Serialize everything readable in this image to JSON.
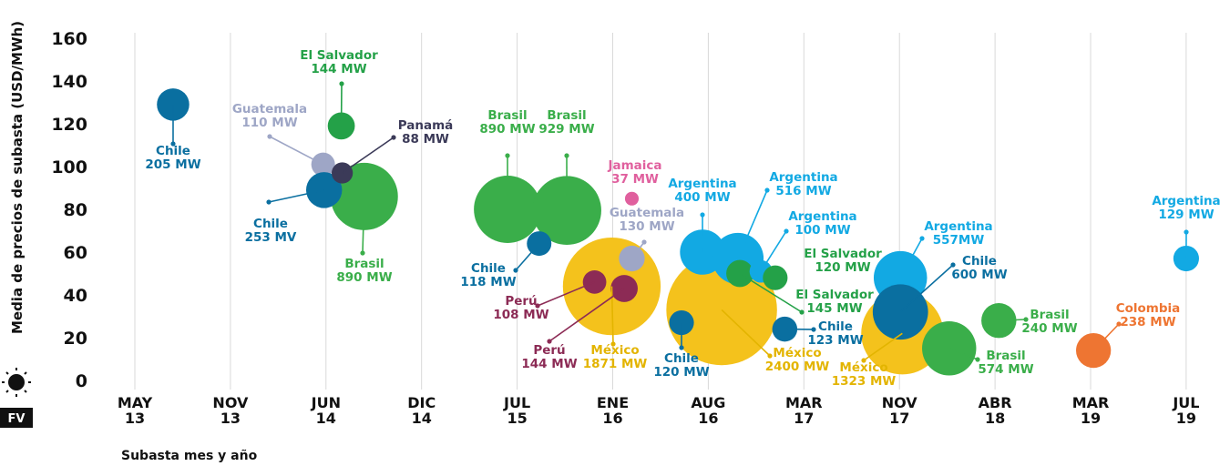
{
  "chart_data": {
    "type": "bubble",
    "y_axis_label": "Media de precios de subasta (USD/MWh)",
    "x_axis_label": "Subasta mes y año",
    "badge": "FV",
    "ylim": [
      0,
      160
    ],
    "yticks": [
      0,
      20,
      40,
      60,
      80,
      100,
      120,
      140,
      160
    ],
    "xlim": [
      -0.17,
      11.6
    ],
    "xticks": [
      {
        "value": 0,
        "label": "MAY 13"
      },
      {
        "value": 1,
        "label": "NOV 13"
      },
      {
        "value": 2,
        "label": "JUN 14"
      },
      {
        "value": 3,
        "label": "DIC 14"
      },
      {
        "value": 4,
        "label": "JUL 15"
      },
      {
        "value": 5,
        "label": "ENE 16"
      },
      {
        "value": 6,
        "label": "AUG 16"
      },
      {
        "value": 7,
        "label": "MAR 17"
      },
      {
        "value": 8,
        "label": "NOV 17"
      },
      {
        "value": 9,
        "label": "ABR 18"
      },
      {
        "value": 10,
        "label": "MAR 19"
      },
      {
        "value": 11,
        "label": "JUL 19"
      }
    ],
    "grid": true,
    "points": [
      {
        "name": "Chile",
        "x": 0.4,
        "y": 129,
        "size": 205,
        "size_label": "205 MW",
        "color": "#0a6fa0"
      },
      {
        "name": "Brasil",
        "x": 2.4,
        "y": 86,
        "size": 890,
        "size_label": "890 MW",
        "color": "#3aae4a"
      },
      {
        "name": "Guatemala",
        "x": 1.97,
        "y": 101,
        "size": 110,
        "size_label": "110 MW",
        "color": "#9ea6c6"
      },
      {
        "name": "Chile",
        "x": 1.98,
        "y": 89,
        "size": 253,
        "size_label": "253 MV",
        "color": "#0a6fa0"
      },
      {
        "name": "Panamá",
        "x": 2.17,
        "y": 97,
        "size": 88,
        "size_label": "88 MW",
        "color": "#3b3a58"
      },
      {
        "name": "El Salvador",
        "x": 2.16,
        "y": 119,
        "size": 144,
        "size_label": "144 MW",
        "color": "#24a148"
      },
      {
        "name": "Brasil",
        "x": 3.9,
        "y": 80,
        "size": 890,
        "size_label": "890 MW",
        "color": "#3aae4a"
      },
      {
        "name": "Brasil",
        "x": 4.52,
        "y": 79.5,
        "size": 929,
        "size_label": "929 MW",
        "color": "#3aae4a"
      },
      {
        "name": "Chile",
        "x": 4.23,
        "y": 64,
        "size": 118,
        "size_label": "118 MW",
        "color": "#0a6fa0"
      },
      {
        "name": "México",
        "x": 4.99,
        "y": 44,
        "size": 1871,
        "size_label": "1871 MW",
        "color": "#f4c21c"
      },
      {
        "name": "Perú",
        "x": 4.81,
        "y": 46,
        "size": 108,
        "size_label": "108 MW",
        "color": "#8c2b55"
      },
      {
        "name": "Perú",
        "x": 5.12,
        "y": 43,
        "size": 144,
        "size_label": "144 MW",
        "color": "#8c2b55"
      },
      {
        "name": "Guatemala",
        "x": 5.2,
        "y": 57,
        "size": 130,
        "size_label": "130 MW",
        "color": "#9ea6c6"
      },
      {
        "name": "Jamaica",
        "x": 5.2,
        "y": 85,
        "size": 37,
        "size_label": "37 MW",
        "color": "#e0609e"
      },
      {
        "name": "México",
        "x": 6.14,
        "y": 33,
        "size": 2400,
        "size_label": "2400 MW",
        "color": "#f4c21c"
      },
      {
        "name": "Argentina",
        "x": 5.94,
        "y": 60,
        "size": 400,
        "size_label": "400 MW",
        "color": "#12a9e3"
      },
      {
        "name": "Argentina",
        "x": 6.31,
        "y": 57,
        "size": 516,
        "size_label": "516 MW",
        "color": "#12a9e3"
      },
      {
        "name": "El Salvador",
        "x": 6.33,
        "y": 50,
        "size": 145,
        "size_label": "145 MW",
        "color": "#24a148"
      },
      {
        "name": "Argentina",
        "x": 6.55,
        "y": 51,
        "size": 100,
        "size_label": "100 MW",
        "color": "#12a9e3"
      },
      {
        "name": "El Salvador",
        "x": 6.7,
        "y": 48,
        "size": 120,
        "size_label": "120 MW",
        "color": "#24a148"
      },
      {
        "name": "Chile",
        "x": 5.72,
        "y": 27,
        "size": 120,
        "size_label": "120 MW",
        "color": "#0a6fa0"
      },
      {
        "name": "Chile",
        "x": 6.8,
        "y": 24,
        "size": 123,
        "size_label": "123 MW",
        "color": "#0a6fa0"
      },
      {
        "name": "México",
        "x": 8.03,
        "y": 22,
        "size": 1323,
        "size_label": "1323 MW",
        "color": "#f4c21c"
      },
      {
        "name": "Argentina",
        "x": 8.01,
        "y": 48,
        "size": 557,
        "size_label": "557MW",
        "color": "#12a9e3"
      },
      {
        "name": "Chile",
        "x": 8.01,
        "y": 32,
        "size": 600,
        "size_label": "600 MW",
        "color": "#0a6fa0"
      },
      {
        "name": "Brasil",
        "x": 8.52,
        "y": 15,
        "size": 574,
        "size_label": "574 MW",
        "color": "#3aae4a"
      },
      {
        "name": "Brasil",
        "x": 9.04,
        "y": 28,
        "size": 240,
        "size_label": "240 MW",
        "color": "#3aae4a"
      },
      {
        "name": "Colombia",
        "x": 10.03,
        "y": 14,
        "size": 238,
        "size_label": "238 MW",
        "color": "#ee7532"
      },
      {
        "name": "Argentina",
        "x": 11.0,
        "y": 57,
        "size": 129,
        "size_label": "129 MW",
        "color": "#12a9e3"
      }
    ]
  }
}
